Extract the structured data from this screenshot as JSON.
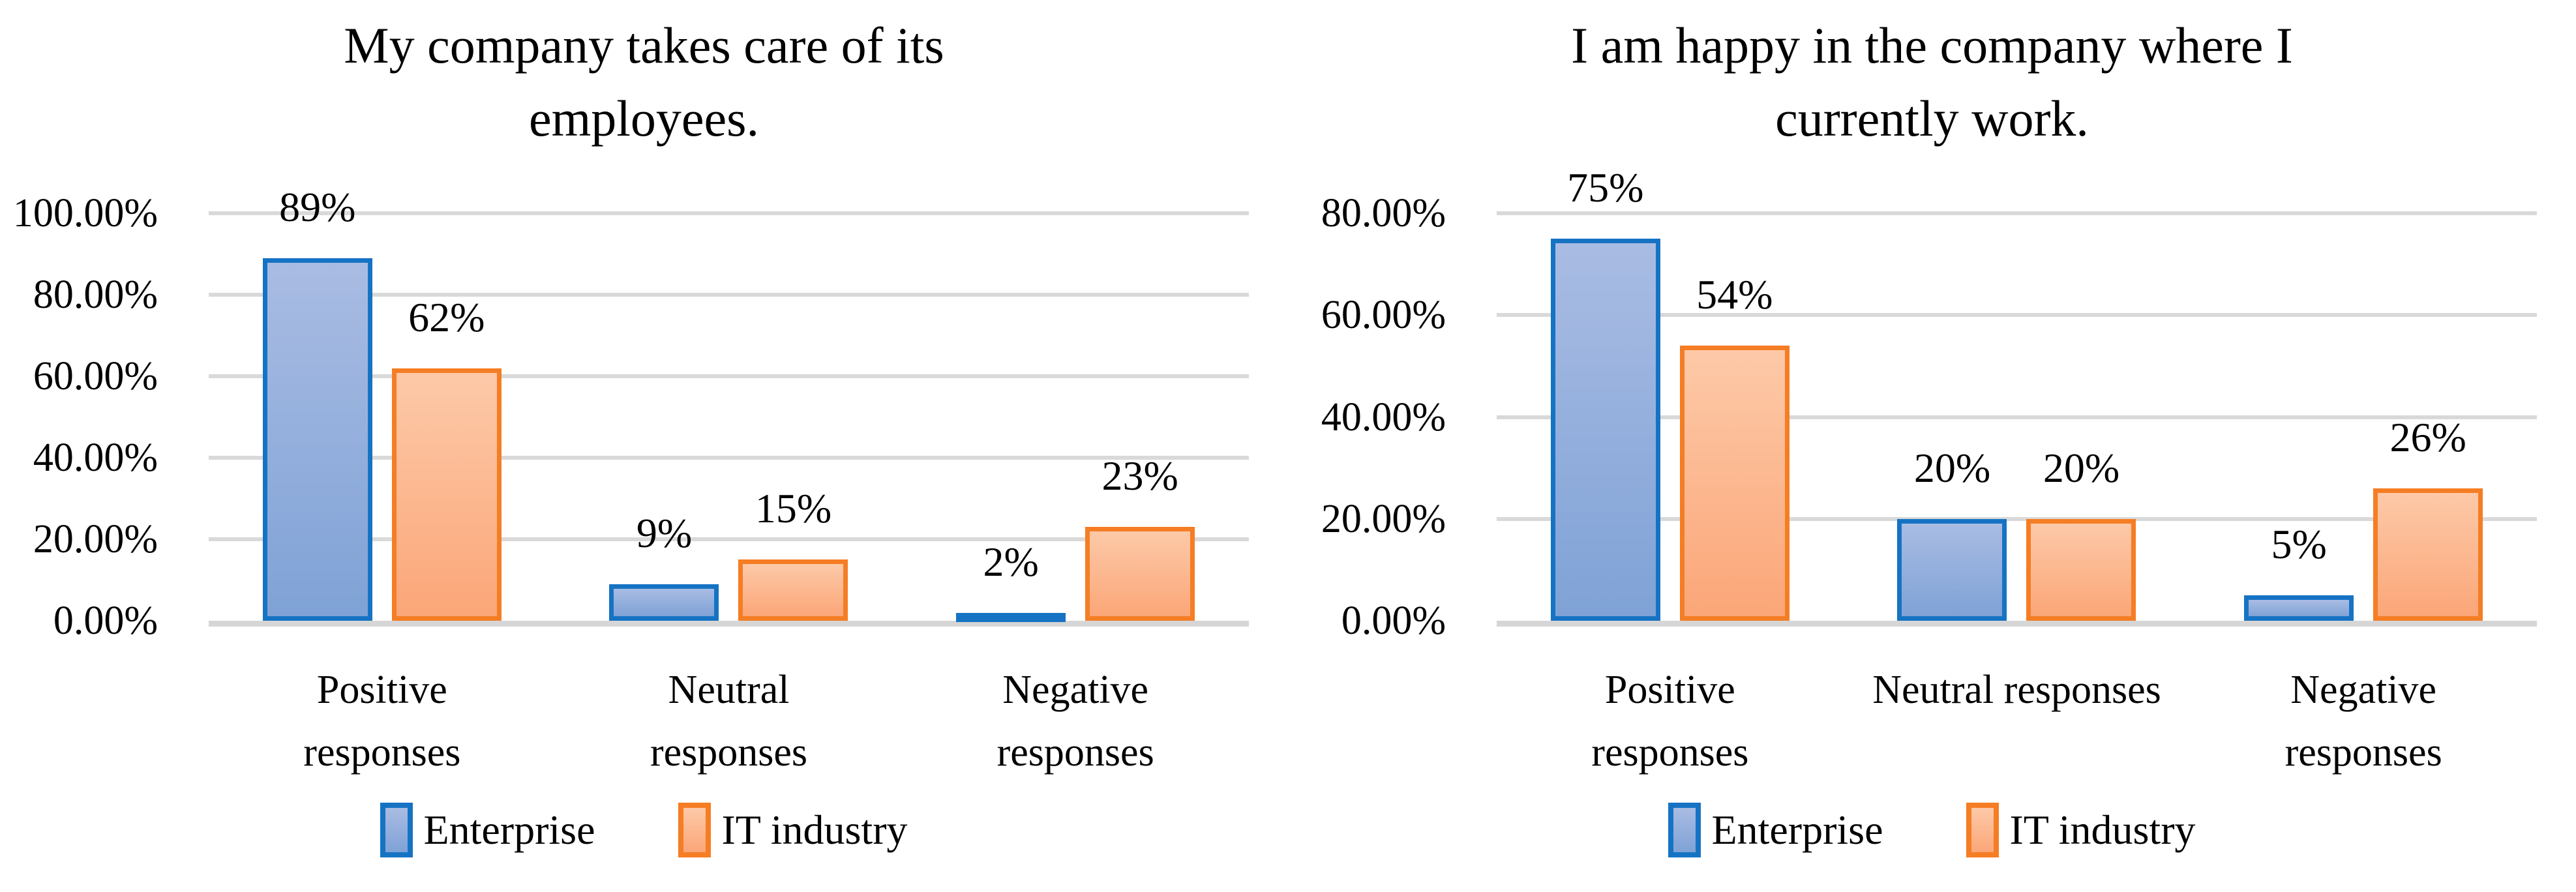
{
  "colors": {
    "background": "#ffffff",
    "text": "#000000",
    "gridline": "#d9d9d9",
    "axis_line": "#d6d6d6",
    "series": [
      {
        "key": "enterprise",
        "border": "#1673c4",
        "fill_top": "#a9bce3",
        "fill_bottom": "#7fa2d6"
      },
      {
        "key": "it-industry",
        "border": "#f57d24",
        "fill_top": "#fdc9a8",
        "fill_bottom": "#fba678"
      }
    ]
  },
  "chart_data": [
    {
      "type": "bar",
      "title": "My company takes care of its employees.",
      "title_display": "My company takes care of its\nemployees.",
      "categories": [
        "Positive responses",
        "Neutral responses",
        "Negative responses"
      ],
      "categories_display": [
        "Positive\nresponses",
        "Neutral\nresponses",
        "Negative\nresponses"
      ],
      "series": [
        {
          "name": "Enterprise",
          "values": [
            89,
            9,
            2
          ],
          "value_labels": [
            "89%",
            "9%",
            "2%"
          ]
        },
        {
          "name": "IT industry",
          "values": [
            62,
            15,
            23
          ],
          "value_labels": [
            "62%",
            "15%",
            "23%"
          ]
        }
      ],
      "ylabel": "",
      "xlabel": "",
      "ylim": [
        0,
        100
      ],
      "ytick_step": 20,
      "ytick_labels": [
        "0.00%",
        "20.00%",
        "40.00%",
        "60.00%",
        "80.00%",
        "100.00%"
      ],
      "grid": true,
      "legend_position": "bottom",
      "legend_labels": [
        "Enterprise",
        "IT industry"
      ]
    },
    {
      "type": "bar",
      "title": "I am happy in the company where I currently work.",
      "title_display": "I am happy in the company where I\ncurrently work.",
      "categories": [
        "Positive responses",
        "Neutral responses",
        "Negative responses"
      ],
      "categories_display": [
        "Positive\nresponses",
        "Neutral responses",
        "Negative\nresponses"
      ],
      "series": [
        {
          "name": "Enterprise",
          "values": [
            75,
            20,
            5
          ],
          "value_labels": [
            "75%",
            "20%",
            "5%"
          ]
        },
        {
          "name": "IT industry",
          "values": [
            54,
            20,
            26
          ],
          "value_labels": [
            "54%",
            "20%",
            "26%"
          ]
        }
      ],
      "ylabel": "",
      "xlabel": "",
      "ylim": [
        0,
        80
      ],
      "ytick_step": 20,
      "ytick_labels": [
        "0.00%",
        "20.00%",
        "40.00%",
        "60.00%",
        "80.00%"
      ],
      "grid": true,
      "legend_position": "bottom",
      "legend_labels": [
        "Enterprise",
        "IT industry"
      ]
    }
  ]
}
